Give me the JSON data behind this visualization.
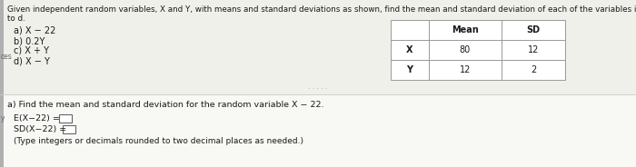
{
  "title_line1": "Given independent random variables, X and Y, with means and standard deviations as shown, find the mean and standard deviation of each of the variables in parts a",
  "title_line2": "to d.",
  "list_items": [
    "a) X − 22",
    "b) 0.2Y",
    "c) X + Y",
    "d) X − Y"
  ],
  "table": {
    "headers": [
      "",
      "Mean",
      "SD"
    ],
    "rows": [
      [
        "X",
        "80",
        "12"
      ],
      [
        "Y",
        "12",
        "2"
      ]
    ]
  },
  "part_a_text": "a) Find the mean and standard deviation for the random variable X − 22.",
  "eq1_label": "E(X−22) =",
  "eq2_label": "SD(X−22) =",
  "note_text": "(Type integers or decimals rounded to two decimal places as needed.)",
  "bg_color": "#f0f0eb",
  "white_color": "#ffffff",
  "text_color": "#1a1a1a",
  "table_border_color": "#999999",
  "divider_color": "#aaaaaa",
  "sidebar_color": "#b0b0b0",
  "margin_text_color": "#666666",
  "dots_text": "· · · · ·"
}
